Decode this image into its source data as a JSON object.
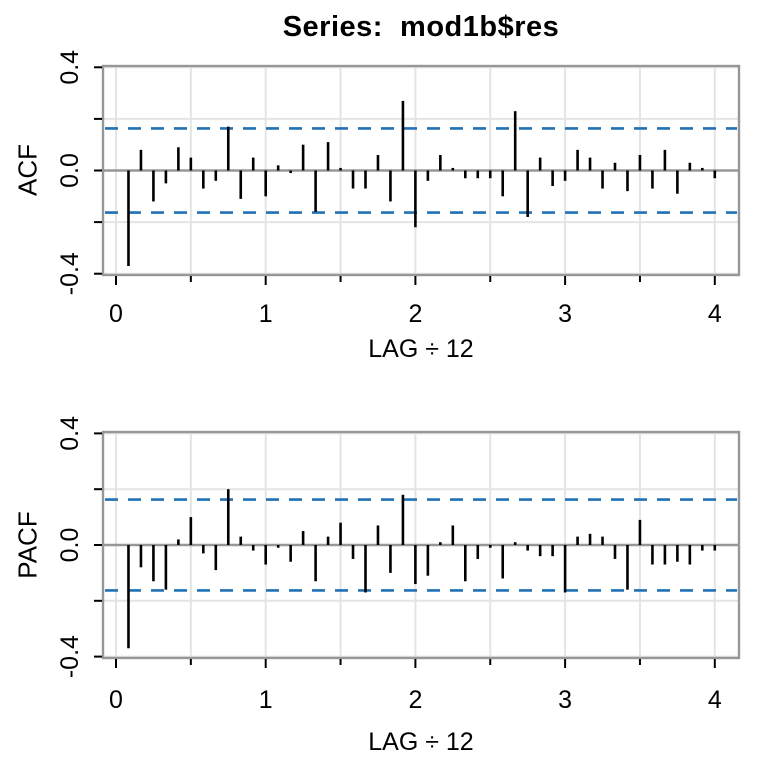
{
  "title": "Series:  mod1b$res",
  "colors": {
    "background": "#ffffff",
    "bar": "#000000",
    "frame": "#979797",
    "zero_line": "#979797",
    "gridline": "#e4e4e4",
    "confidence_band": "#2171b5",
    "text": "#000000"
  },
  "chart_data": {
    "type": "bar",
    "title": "Series:  mod1b$res",
    "xlabel": "LAG ÷ 12",
    "x_description": "correlogram: lag k is plotted at x = k/12, k = 1..48",
    "xlim": [
      -0.09,
      4.17
    ],
    "ylim": [
      -0.405,
      0.405
    ],
    "grid": "on",
    "xticks": {
      "major_values": [
        0,
        1,
        2,
        3,
        4
      ],
      "major_labels": [
        "0",
        "1",
        "2",
        "3",
        "4"
      ],
      "minor_values": [
        0.5,
        1.5,
        2.5,
        3.5
      ]
    },
    "yticks": {
      "labeled_values": [
        0.4,
        0,
        -0.4
      ],
      "labels": [
        "0.4",
        "0.0",
        "-0.4"
      ],
      "minor_values": [
        0.2,
        -0.2
      ],
      "all_tick_values": [
        0.4,
        0.2,
        0,
        -0.2,
        -0.4
      ]
    },
    "confidence_bands": {
      "upper": 0.163,
      "lower": -0.163,
      "style": "dashed"
    },
    "lags": [
      1,
      2,
      3,
      4,
      5,
      6,
      7,
      8,
      9,
      10,
      11,
      12,
      13,
      14,
      15,
      16,
      17,
      18,
      19,
      20,
      21,
      22,
      23,
      24,
      25,
      26,
      27,
      28,
      29,
      30,
      31,
      32,
      33,
      34,
      35,
      36,
      37,
      38,
      39,
      40,
      41,
      42,
      43,
      44,
      45,
      46,
      47,
      48
    ],
    "panels": [
      {
        "ylabel": "ACF",
        "values": [
          -0.37,
          0.08,
          -0.12,
          -0.05,
          0.09,
          0.05,
          -0.07,
          -0.04,
          0.17,
          -0.11,
          0.05,
          -0.1,
          0.02,
          -0.01,
          0.1,
          -0.16,
          0.11,
          0.01,
          -0.07,
          -0.07,
          0.06,
          -0.12,
          0.27,
          -0.22,
          -0.04,
          0.06,
          0.01,
          -0.03,
          -0.03,
          -0.03,
          -0.1,
          0.23,
          -0.18,
          0.05,
          -0.06,
          -0.04,
          0.08,
          0.05,
          -0.07,
          0.03,
          -0.08,
          0.06,
          -0.07,
          0.08,
          -0.09,
          0.03,
          0.01,
          -0.03
        ]
      },
      {
        "ylabel": "PACF",
        "values": [
          -0.37,
          -0.08,
          -0.13,
          -0.16,
          0.02,
          0.1,
          -0.03,
          -0.09,
          0.2,
          0.03,
          -0.02,
          -0.07,
          -0.01,
          -0.06,
          0.05,
          -0.13,
          0.03,
          0.08,
          -0.05,
          -0.17,
          0.07,
          -0.1,
          0.18,
          -0.14,
          -0.11,
          0.01,
          0.07,
          -0.13,
          -0.05,
          -0.01,
          -0.12,
          0.01,
          -0.02,
          -0.04,
          -0.04,
          -0.17,
          0.03,
          0.04,
          0.03,
          -0.05,
          -0.16,
          0.09,
          -0.07,
          -0.07,
          -0.06,
          -0.07,
          -0.02,
          -0.02
        ]
      }
    ]
  }
}
